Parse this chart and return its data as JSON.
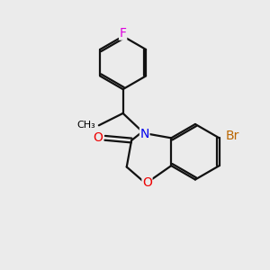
{
  "background_color": "#ebebeb",
  "atom_colors": {
    "F": "#dd00dd",
    "N": "#0000ee",
    "O": "#ee0000",
    "Br": "#bb6600",
    "C": "#000000"
  },
  "bond_color": "#111111",
  "bond_width": 1.6,
  "dbo": 0.045
}
